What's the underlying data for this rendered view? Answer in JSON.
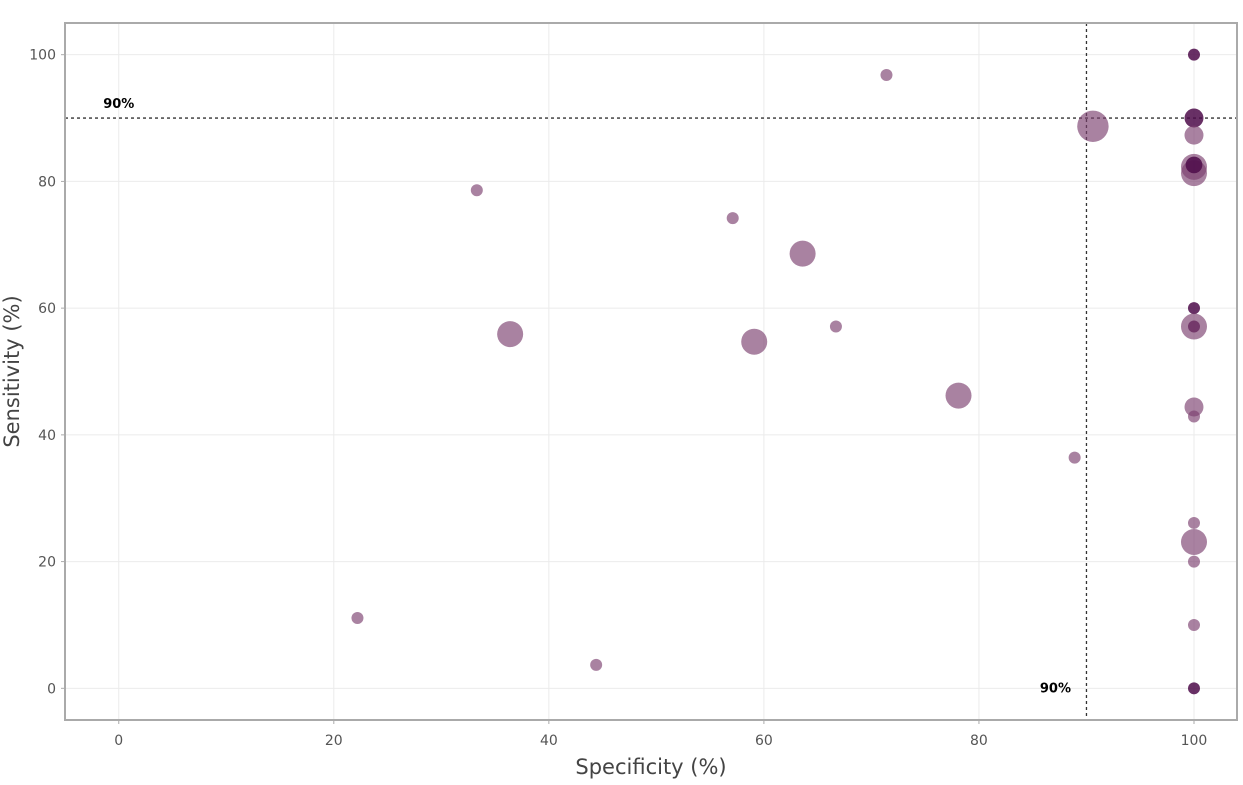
{
  "chart_data": {
    "type": "scatter",
    "title": "",
    "xlabel": "Specificity (%)",
    "ylabel": "Sensitivity (%)",
    "xlim": [
      -5,
      104
    ],
    "ylim": [
      -5,
      105
    ],
    "xticks": [
      0,
      20,
      40,
      60,
      80,
      100
    ],
    "yticks": [
      0,
      20,
      40,
      60,
      80,
      100
    ],
    "grid": true,
    "legend": "none",
    "colors": {
      "point": "#7b3f6e",
      "dark": "#4e0c4a",
      "reference": "#333333"
    },
    "reference_lines": [
      {
        "axis": "y",
        "value": 90,
        "label": "90%"
      },
      {
        "axis": "x",
        "value": 90,
        "label": "90%"
      }
    ],
    "points": [
      {
        "x": 22.2,
        "y": 11.1,
        "size": 1,
        "opacity": 0.6
      },
      {
        "x": 33.3,
        "y": 78.6,
        "size": 1,
        "opacity": 0.6
      },
      {
        "x": 36.4,
        "y": 55.9,
        "size": 4,
        "opacity": 0.6
      },
      {
        "x": 44.4,
        "y": 3.7,
        "size": 1,
        "opacity": 0.6
      },
      {
        "x": 57.1,
        "y": 74.2,
        "size": 1,
        "opacity": 0.6
      },
      {
        "x": 59.1,
        "y": 54.7,
        "size": 4,
        "opacity": 0.6
      },
      {
        "x": 63.6,
        "y": 68.6,
        "size": 4,
        "opacity": 0.6
      },
      {
        "x": 66.7,
        "y": 57.1,
        "size": 1,
        "opacity": 0.6
      },
      {
        "x": 71.4,
        "y": 96.8,
        "size": 1,
        "opacity": 0.6
      },
      {
        "x": 78.1,
        "y": 46.2,
        "size": 4,
        "opacity": 0.6
      },
      {
        "x": 88.9,
        "y": 36.4,
        "size": 1,
        "opacity": 0.6
      },
      {
        "x": 90.6,
        "y": 88.7,
        "size": 6,
        "opacity": 0.6
      },
      {
        "x": 100,
        "y": 100,
        "size": 1,
        "opacity": 0.9
      },
      {
        "x": 100,
        "y": 90,
        "size": 2,
        "opacity": 0.9
      },
      {
        "x": 100,
        "y": 87.3,
        "size": 2,
        "opacity": 0.6
      },
      {
        "x": 100,
        "y": 82.3,
        "size": 4,
        "opacity": 0.6
      },
      {
        "x": 100,
        "y": 81.3,
        "size": 4,
        "opacity": 0.6
      },
      {
        "x": 100,
        "y": 82.6,
        "size": 1.5,
        "opacity": 0.9
      },
      {
        "x": 100,
        "y": 60,
        "size": 1,
        "opacity": 0.9
      },
      {
        "x": 100,
        "y": 57.1,
        "size": 1,
        "opacity": 0.9
      },
      {
        "x": 100,
        "y": 57.1,
        "size": 4,
        "opacity": 0.6
      },
      {
        "x": 100,
        "y": 44.4,
        "size": 2,
        "opacity": 0.6
      },
      {
        "x": 100,
        "y": 42.9,
        "size": 1,
        "opacity": 0.6
      },
      {
        "x": 100,
        "y": 26.1,
        "size": 1,
        "opacity": 0.6
      },
      {
        "x": 100,
        "y": 23.1,
        "size": 4,
        "opacity": 0.6
      },
      {
        "x": 100,
        "y": 20,
        "size": 1,
        "opacity": 0.6
      },
      {
        "x": 100,
        "y": 10,
        "size": 1,
        "opacity": 0.6
      },
      {
        "x": 100,
        "y": 0,
        "size": 1,
        "opacity": 0.9
      }
    ]
  }
}
